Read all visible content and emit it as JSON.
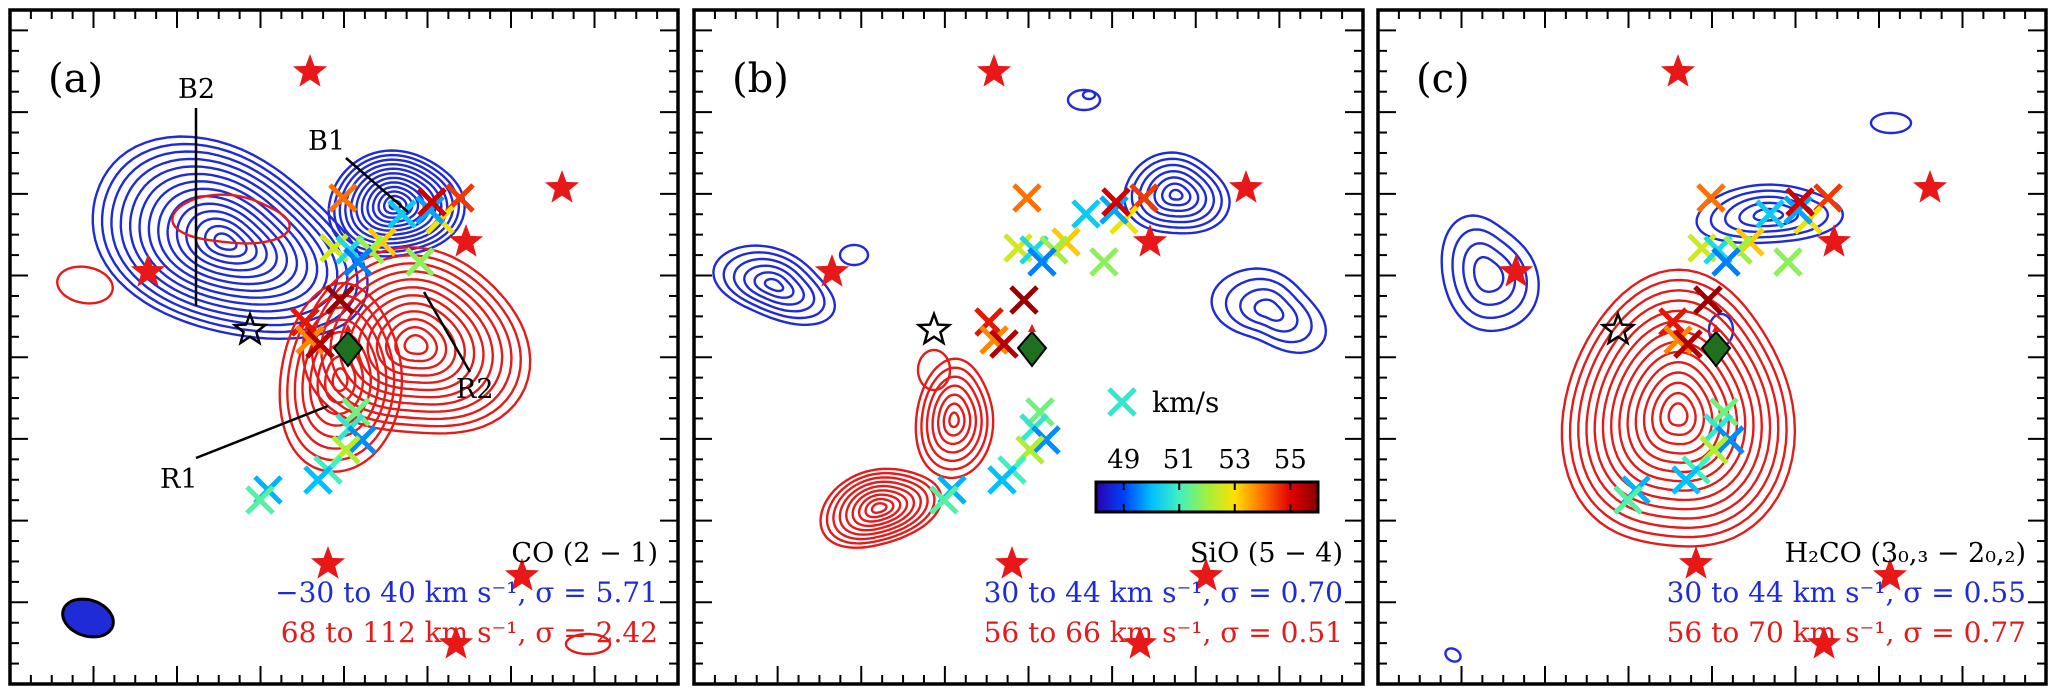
{
  "colors": {
    "blue": "#1f2bd6",
    "red": "#e41b1b",
    "star": "#e81818",
    "diamond": "#1e6f1e",
    "black": "#000000"
  },
  "colorbar": {
    "title": "km/s",
    "ticks": [
      "49",
      "51",
      "53",
      "55"
    ],
    "range": [
      48,
      56
    ],
    "stops": [
      "#2b00a8",
      "#0040ff",
      "#00c0ff",
      "#40f0c0",
      "#a0f040",
      "#ffe000",
      "#ff7000",
      "#e00000",
      "#8a0000"
    ]
  },
  "panels": [
    {
      "label": "(a)",
      "line": "CO (2 − 1)",
      "blue_text": "−30 to 40 km s⁻¹, σ = 5.71",
      "red_text": "68 to 112 km s⁻¹, σ = 2.42",
      "annotations": [
        "B2",
        "B1",
        "R1",
        "R2"
      ]
    },
    {
      "label": "(b)",
      "line": "SiO (5 − 4)",
      "blue_text": "30 to 44 km s⁻¹, σ = 0.70",
      "red_text": "56 to 66 km s⁻¹, σ = 0.51",
      "annotations": []
    },
    {
      "label": "(c)",
      "line": "H₂CO (3₀,₃ − 2₀,₂)",
      "blue_text": "30 to 44 km s⁻¹, σ = 0.55",
      "red_text": "56 to 70 km s⁻¹, σ = 0.77",
      "annotations": []
    }
  ],
  "chart_data": {
    "type": "scatter",
    "panel_count": 3,
    "markers": {
      "stars_red": 7,
      "star_open": 1,
      "diamond": 1
    },
    "crosses": [
      {
        "velocity": 52.5
      },
      {
        "velocity": 50.5
      },
      {
        "velocity": 53.2
      },
      {
        "velocity": 52.0
      },
      {
        "velocity": 49.5
      },
      {
        "velocity": 51.8
      },
      {
        "velocity": 54.5
      },
      {
        "velocity": 52.8
      },
      {
        "velocity": 50.2
      },
      {
        "velocity": 49.8
      },
      {
        "velocity": 55.2
      },
      {
        "velocity": 54.0
      },
      {
        "velocity": 54.8
      },
      {
        "velocity": 53.8
      },
      {
        "velocity": 55.5
      },
      {
        "velocity": 55.8
      },
      {
        "velocity": 51.5
      },
      {
        "velocity": 50.8
      },
      {
        "velocity": 49.6
      },
      {
        "velocity": 52.2
      },
      {
        "velocity": 51.0
      },
      {
        "velocity": 50.0
      },
      {
        "velocity": 49.9
      },
      {
        "velocity": 51.2
      }
    ]
  }
}
